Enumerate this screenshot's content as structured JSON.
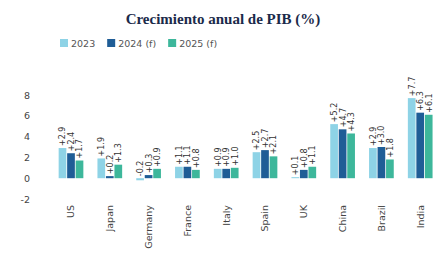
{
  "chart_data": {
    "type": "bar",
    "title": "Crecimiento anual de PIB (%)",
    "categories": [
      "US",
      "Japan",
      "Germany",
      "France",
      "Italy",
      "Spain",
      "UK",
      "China",
      "Brazil",
      "India"
    ],
    "series": [
      {
        "name": "2023",
        "color": "#8ed3e6",
        "values": [
          2.9,
          1.9,
          -0.2,
          1.1,
          0.9,
          2.5,
          0.1,
          5.2,
          2.9,
          7.7
        ],
        "value_labels": [
          "+2.9",
          "+1.9",
          "-0.2",
          "+1.1",
          "+0.9",
          "+2.5",
          "+0.1",
          "+5.2",
          "+2.9",
          "+7.7"
        ]
      },
      {
        "name": "2024 (f)",
        "color": "#1f5d96",
        "values": [
          2.4,
          0.2,
          0.3,
          1.1,
          0.9,
          2.7,
          0.8,
          4.7,
          3.0,
          6.3
        ],
        "value_labels": [
          "+2.4",
          "+0.2",
          "+0.3",
          "+1.1",
          "+0.9",
          "+2.7",
          "+0.8",
          "+4.7",
          "+3.0",
          "+6.3"
        ]
      },
      {
        "name": "2025 (f)",
        "color": "#3db79b",
        "values": [
          1.7,
          1.3,
          0.9,
          0.8,
          1.0,
          2.1,
          1.1,
          4.3,
          1.8,
          6.1
        ],
        "value_labels": [
          "+1.7",
          "+1.3",
          "+0.9",
          "+0.8",
          "+1.0",
          "+2.1",
          "+1.1",
          "+4.3",
          "+1.8",
          "+6.1"
        ]
      }
    ],
    "ylim": [
      -2,
      8
    ],
    "yticks": [
      -2,
      0,
      2,
      4,
      6,
      8
    ],
    "grid": false,
    "data_labels": true,
    "legend": "top"
  }
}
